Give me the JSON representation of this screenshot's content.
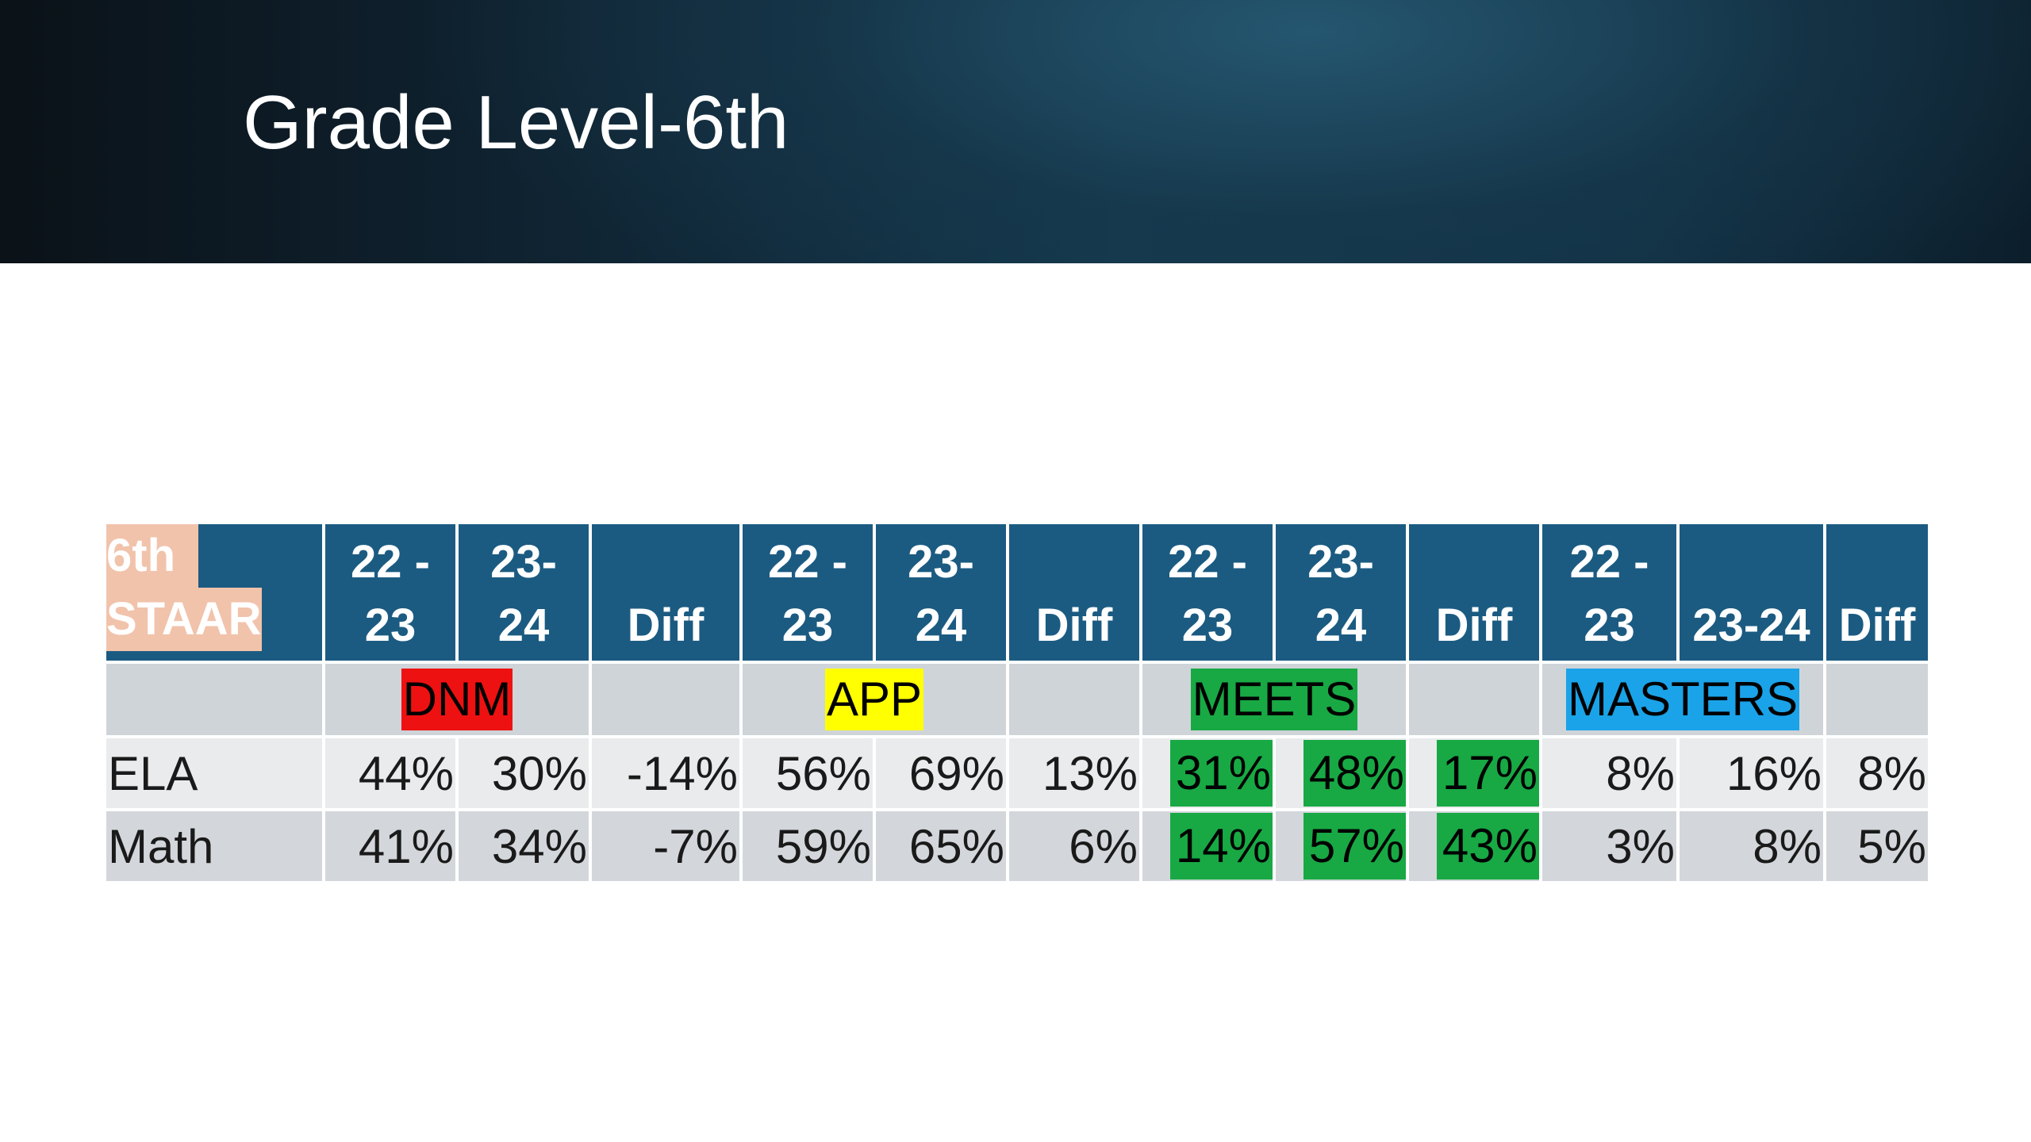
{
  "slide": {
    "title": "Grade Level-6th"
  },
  "table": {
    "corner": {
      "line1": "6th",
      "line2": "STAAR"
    },
    "headers": [
      {
        "line1": "22 -",
        "line2": "23"
      },
      {
        "line1": "23-",
        "line2": "24"
      },
      {
        "line1": "",
        "line2": "Diff"
      },
      {
        "line1": "22 -",
        "line2": "23"
      },
      {
        "line1": "23-",
        "line2": "24"
      },
      {
        "line1": "",
        "line2": "Diff"
      },
      {
        "line1": "22 -",
        "line2": "23"
      },
      {
        "line1": "23-",
        "line2": "24"
      },
      {
        "line1": "",
        "line2": "Diff"
      },
      {
        "line1": "22 -",
        "line2": "23"
      },
      {
        "line1": "",
        "line2": "23-24"
      },
      {
        "line1": "",
        "line2": "Diff"
      }
    ],
    "categories": [
      {
        "label": "DNM",
        "color": "#ee1111",
        "text_color": "#000000"
      },
      {
        "label": "APP",
        "color": "#ffff00",
        "text_color": "#000000"
      },
      {
        "label": "MEETS",
        "color": "#18a944",
        "text_color": "#000000"
      },
      {
        "label": "MASTERS",
        "color": "#1aa3e8",
        "text_color": "#000000"
      }
    ],
    "rows": [
      {
        "subject": "ELA",
        "values": [
          "44%",
          "30%",
          "-14%",
          "56%",
          "69%",
          "13%",
          "31%",
          "48%",
          "17%",
          "8%",
          "16%",
          "8%"
        ]
      },
      {
        "subject": "Math",
        "values": [
          "41%",
          "34%",
          "-7%",
          "59%",
          "65%",
          "6%",
          "14%",
          "57%",
          "43%",
          "3%",
          "8%",
          "5%"
        ]
      }
    ],
    "highlight_color": "#18a944",
    "header_color": "#1b5b82"
  }
}
